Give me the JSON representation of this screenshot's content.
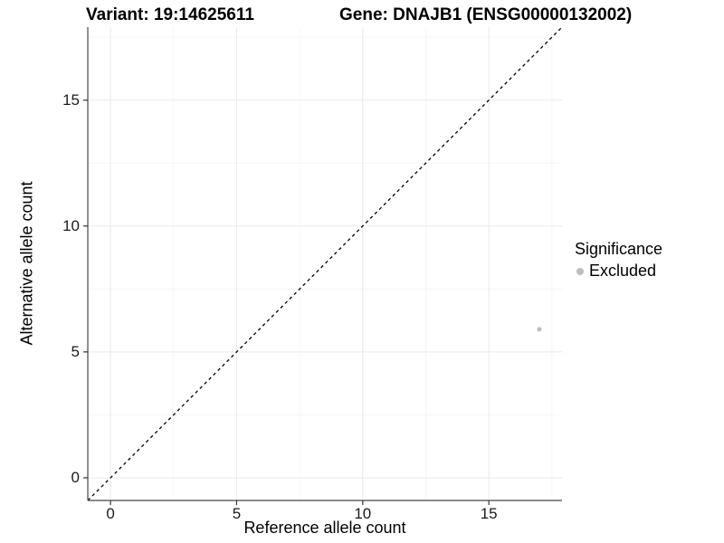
{
  "chart_data": {
    "type": "scatter",
    "titles": [
      "Variant: 19:14625611",
      "Gene: DNAJB1 (ENSG00000132002)"
    ],
    "xlabel": "Reference allele count",
    "ylabel": "Alternative allele count",
    "xlim": [
      -0.9,
      17.9
    ],
    "ylim": [
      -0.9,
      17.9
    ],
    "x_ticks": [
      0,
      5,
      10,
      15
    ],
    "y_ticks": [
      0,
      5,
      10,
      15
    ],
    "x_minor_ticks": [
      2.5,
      7.5,
      12.5,
      17.5
    ],
    "y_minor_ticks": [
      2.5,
      7.5,
      12.5,
      17.5
    ],
    "grid": true,
    "identity_line": {
      "style": "dashed",
      "color": "#000000",
      "from": [
        -0.9,
        -0.9
      ],
      "to": [
        17.9,
        17.9
      ]
    },
    "series": [
      {
        "name": "Excluded",
        "color": "#bebebe",
        "point_size": 2.5,
        "points": [
          [
            17,
            5.9
          ]
        ]
      }
    ],
    "legend": {
      "title": "Significance",
      "position": "right",
      "entries": [
        {
          "label": "Excluded",
          "color": "#bebebe"
        }
      ]
    },
    "colors": {
      "grid_major": "#e9e9e9",
      "grid_minor": "#f4f4f4",
      "axis_line": "#464646",
      "tick": "#333333",
      "point": "#bebebe"
    }
  }
}
